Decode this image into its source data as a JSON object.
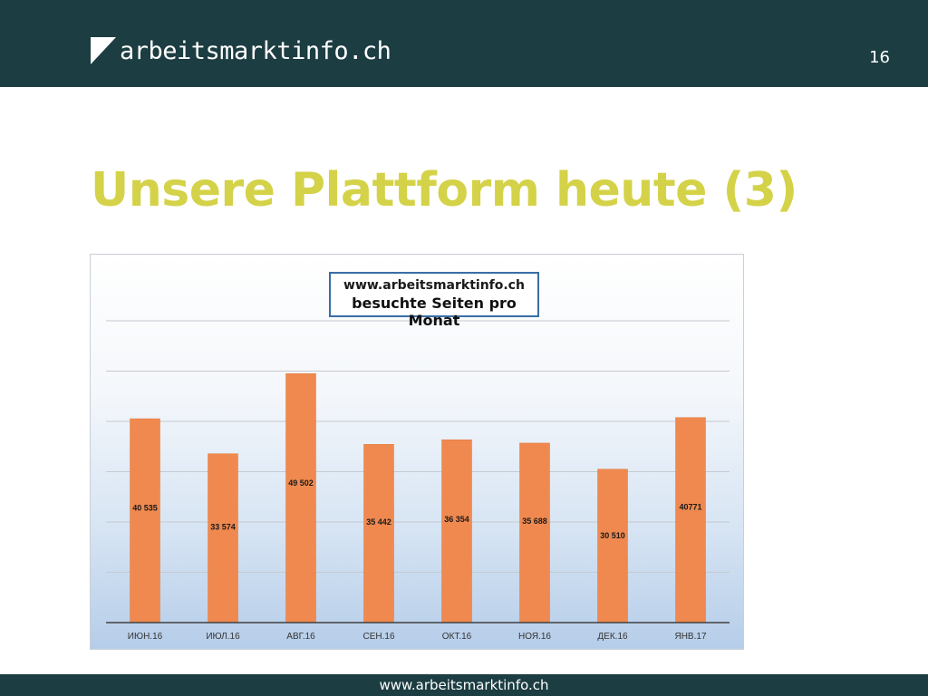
{
  "header": {
    "logo_text": "arbeitsmarktinfo.ch",
    "page_number": "16"
  },
  "slide": {
    "title": "Unsere Plattform heute (3)"
  },
  "footer": {
    "url": "www.arbeitsmarktinfo.ch"
  },
  "colors": {
    "header_bg": "#1c3d42",
    "title": "#d4d248",
    "bar": "#f0894f"
  },
  "chart_data": {
    "type": "bar",
    "title_line1": "www.arbeitsmarktinfo.ch",
    "title_line2": "besuchte Seiten pro Monat",
    "categories": [
      "ИЮН.16",
      "ИЮЛ.16",
      "АВГ.16",
      "СЕН.16",
      "ОКТ.16",
      "НОЯ.16",
      "ДЕК.16",
      "ЯНВ.17"
    ],
    "values": [
      40535,
      33574,
      49502,
      35442,
      36354,
      35688,
      30510,
      40771
    ],
    "data_labels": [
      "40 535",
      "33 574",
      "49 502",
      "35 442",
      "36 354",
      "35 688",
      "30 510",
      "40771"
    ],
    "ylim": [
      0,
      60000
    ],
    "grid": true,
    "legend": "none"
  }
}
